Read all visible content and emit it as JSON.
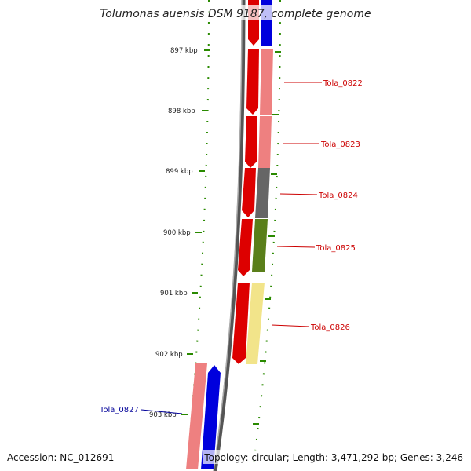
{
  "title": "Tolumonas auensis DSM 9187, complete genome",
  "kbp_labels": [
    "897 kbp",
    "898 kbp",
    "899 kbp",
    "900 kbp",
    "901 kbp",
    "902 kbp",
    "903 kbp"
  ],
  "genes": [
    {
      "name": "Tola_0822",
      "color": "#cc0000"
    },
    {
      "name": "Tola_0823",
      "color": "#cc0000"
    },
    {
      "name": "Tola_0824",
      "color": "#cc0000"
    },
    {
      "name": "Tola_0825",
      "color": "#cc0000"
    },
    {
      "name": "Tola_0826",
      "color": "#cc0000"
    },
    {
      "name": "Tola_0827",
      "color": "#000099"
    }
  ],
  "footer": {
    "accession": "Accession: NC_012691",
    "topology": "Topology: circular; Length: 3,471,292 bp; Genes: 3,246"
  }
}
